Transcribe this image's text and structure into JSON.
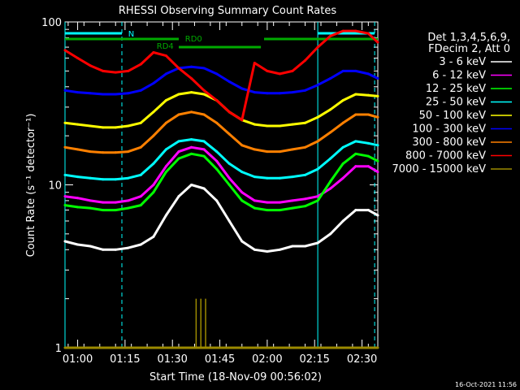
{
  "chart_data": {
    "type": "line",
    "title": "RHESSI Observing Summary Count Rates",
    "xlabel": "Start Time (18-Nov-09 00:56:02)",
    "ylabel": "Count Rate (s⁻¹ detector⁻¹)",
    "yscale": "log",
    "ylim": [
      1,
      100
    ],
    "xlim_minutes": [
      0,
      99
    ],
    "x_ticks": [
      "01:00",
      "01:15",
      "01:30",
      "01:45",
      "02:00",
      "02:15",
      "02:30"
    ],
    "y_ticks": [
      "1",
      "10",
      "100"
    ],
    "legend_header": [
      "Det 1,3,4,5,6,9,",
      "FDecim 2, Att 0"
    ],
    "timestamp": "16-Oct-2021 11:56",
    "annotations": {
      "night": "N",
      "rd_labels": [
        "RD4",
        "RD0"
      ]
    },
    "x": [
      0,
      4,
      8,
      12,
      16,
      20,
      24,
      28,
      32,
      36,
      40,
      44,
      48,
      52,
      56,
      60,
      64,
      68,
      72,
      76,
      80,
      84,
      88,
      92,
      96,
      99
    ],
    "series": [
      {
        "name": "3 - 6 keV",
        "color": "#ffffff",
        "values": [
          4.5,
          4.3,
          4.2,
          4.0,
          4.0,
          4.1,
          4.3,
          4.8,
          6.5,
          8.5,
          10.0,
          9.5,
          8.0,
          6.0,
          4.5,
          4.0,
          3.9,
          4.0,
          4.2,
          4.2,
          4.4,
          5.0,
          6.0,
          7.0,
          7.0,
          6.5
        ]
      },
      {
        "name": "6 - 12 keV",
        "color": "#ff00ff",
        "values": [
          8.5,
          8.3,
          8.0,
          7.8,
          7.8,
          8.0,
          8.5,
          10.0,
          13.0,
          16.0,
          17.0,
          16.5,
          14.0,
          11.0,
          9.0,
          8.0,
          7.8,
          7.8,
          8.0,
          8.2,
          8.5,
          9.5,
          11.0,
          13.0,
          13.0,
          12.0
        ]
      },
      {
        "name": "12 - 25 keV",
        "color": "#00ff00",
        "values": [
          7.5,
          7.3,
          7.2,
          7.0,
          7.0,
          7.2,
          7.5,
          9.0,
          12.0,
          14.5,
          15.5,
          15.0,
          12.5,
          10.0,
          8.0,
          7.2,
          7.0,
          7.0,
          7.2,
          7.4,
          8.0,
          10.5,
          13.5,
          15.5,
          15.0,
          14.0
        ]
      },
      {
        "name": "25 - 50 keV",
        "color": "#00ffff",
        "values": [
          11.5,
          11.2,
          11.0,
          10.8,
          10.8,
          11.0,
          11.5,
          13.5,
          16.5,
          18.5,
          19.0,
          18.5,
          16.0,
          13.5,
          12.0,
          11.2,
          11.0,
          11.0,
          11.2,
          11.5,
          12.5,
          14.5,
          17.0,
          18.5,
          18.0,
          17.5
        ]
      },
      {
        "name": "50 - 100 keV",
        "color": "#ffff00",
        "values": [
          24.0,
          23.5,
          23.0,
          22.5,
          22.5,
          23.0,
          24.0,
          28.0,
          33.0,
          36.0,
          37.0,
          36.0,
          33.0,
          28.0,
          25.0,
          23.5,
          23.0,
          23.0,
          23.5,
          24.0,
          26.0,
          29.0,
          33.0,
          36.0,
          35.5,
          35.0
        ]
      },
      {
        "name": "100 - 300 keV",
        "color": "#0000ff",
        "values": [
          38.0,
          37.0,
          36.5,
          36.0,
          36.0,
          36.5,
          38.0,
          42.0,
          48.0,
          52.0,
          53.0,
          52.0,
          48.0,
          43.0,
          39.0,
          37.0,
          36.5,
          36.5,
          37.0,
          38.0,
          41.0,
          45.0,
          50.0,
          50.0,
          48.0,
          45.0
        ]
      },
      {
        "name": "300 - 800 keV",
        "color": "#ff8000",
        "values": [
          17.0,
          16.5,
          16.0,
          15.8,
          15.8,
          16.0,
          17.0,
          20.0,
          24.0,
          27.0,
          28.0,
          27.0,
          24.0,
          20.5,
          17.5,
          16.5,
          16.0,
          16.0,
          16.5,
          17.0,
          18.5,
          21.0,
          24.0,
          27.0,
          27.0,
          26.0
        ]
      },
      {
        "name": "800 - 7000 keV",
        "color": "#ff0000",
        "values": [
          67.0,
          60.0,
          54.0,
          50.0,
          49.0,
          50.0,
          55.0,
          65.0,
          62.0,
          52.0,
          45.0,
          38.0,
          33.0,
          28.0,
          25.0,
          56.0,
          50.0,
          48.0,
          50.0,
          58.0,
          70.0,
          82.0,
          88.0,
          88.0,
          85.0,
          75.0
        ]
      },
      {
        "name": "7000 - 15000 keV",
        "color": "#9c8a00",
        "values": [
          1.0,
          1.0,
          1.0,
          1.0,
          1.0,
          1.0,
          1.0,
          1.0,
          1.0,
          1.0,
          1.0,
          1.0,
          1.0,
          1.0,
          1.0,
          1.0,
          1.0,
          1.0,
          1.0,
          1.0,
          1.0,
          1.0,
          1.0,
          1.0,
          1.0,
          1.0
        ]
      }
    ]
  }
}
